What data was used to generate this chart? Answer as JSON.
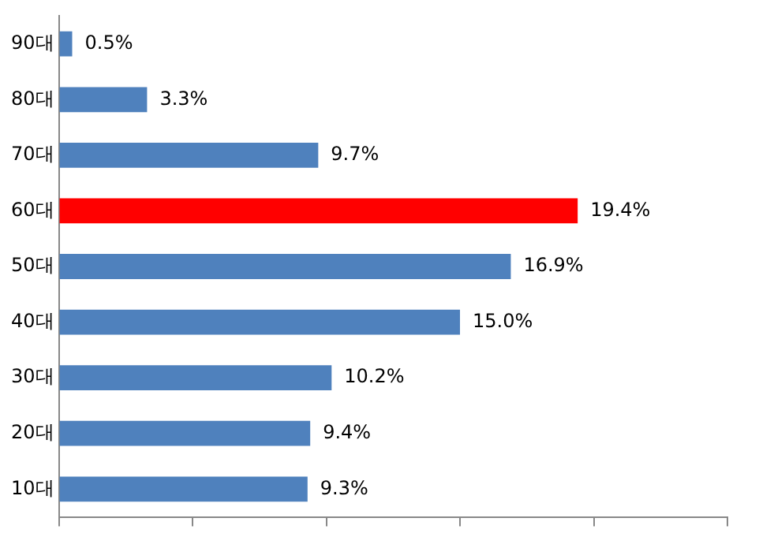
{
  "chart_data": {
    "type": "bar",
    "orientation": "horizontal",
    "categories": [
      "90대",
      "80대",
      "70대",
      "60대",
      "50대",
      "40대",
      "30대",
      "20대",
      "10대"
    ],
    "values": [
      0.5,
      3.3,
      9.7,
      19.4,
      16.9,
      15.0,
      10.2,
      9.4,
      9.3
    ],
    "colors": [
      "#4f81bd",
      "#4f81bd",
      "#4f81bd",
      "#ff0000",
      "#4f81bd",
      "#4f81bd",
      "#4f81bd",
      "#4f81bd",
      "#4f81bd"
    ],
    "value_labels": [
      "0.5%",
      "3.3%",
      "9.7%",
      "19.4%",
      "16.9%",
      "15.0%",
      "10.2%",
      "9.4%",
      "9.3%"
    ],
    "xlim": [
      0,
      25
    ],
    "xticks": [
      {
        "value": 0,
        "label": null
      },
      {
        "value": 5,
        "label": null
      },
      {
        "value": 10,
        "label": null
      },
      {
        "value": 15,
        "label": null
      },
      {
        "value": 20,
        "label": null
      },
      {
        "value": 25,
        "label": null
      }
    ],
    "tick_labels": "y",
    "grid": false,
    "legend": false
  }
}
